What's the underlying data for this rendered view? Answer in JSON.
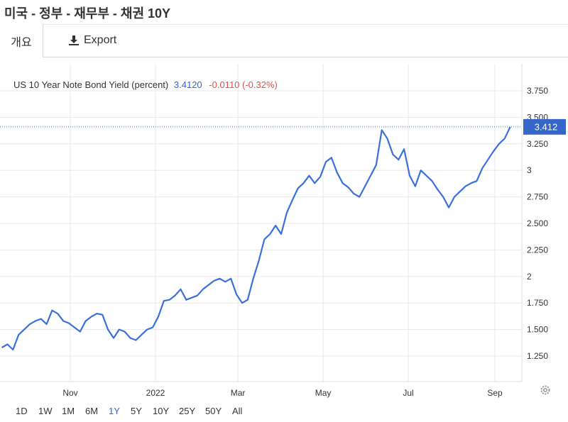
{
  "header": {
    "title": "미국 - 정부 - 재무부 - 채권 10Y"
  },
  "tabs": {
    "overview": "개요",
    "export": "Export"
  },
  "legend": {
    "name": "US 10 Year Note Bond Yield (percent)",
    "value": "3.4120",
    "change": "-0.0110 (-0.32%)"
  },
  "current_label": "3.412",
  "ranges": [
    "1D",
    "1W",
    "1M",
    "6M",
    "1Y",
    "5Y",
    "10Y",
    "25Y",
    "50Y",
    "All"
  ],
  "active_range": "1Y",
  "colors": {
    "line": "#3a6fdc",
    "accent": "#3566c8",
    "negative": "#d9534f",
    "grid": "#e8e8e8"
  },
  "chart_data": {
    "type": "line",
    "title": "",
    "xlabel": "",
    "ylabel": "",
    "ylim": [
      1.1,
      3.85
    ],
    "y_ticks": [
      "1.250",
      "1.500",
      "1.750",
      "2",
      "2.250",
      "2.500",
      "2.750",
      "3",
      "3.250",
      "3.500",
      "3.750"
    ],
    "x_ticks": [
      "Nov",
      "2022",
      "Mar",
      "May",
      "Jul",
      "Sep"
    ],
    "grid": true,
    "series": [
      {
        "name": "US 10 Year Note Bond Yield (percent)",
        "x": [
          "2021-09-13",
          "2021-09-17",
          "2021-09-21",
          "2021-09-25",
          "2021-09-29",
          "2021-10-03",
          "2021-10-07",
          "2021-10-11",
          "2021-10-15",
          "2021-10-19",
          "2021-10-23",
          "2021-10-27",
          "2021-10-31",
          "2021-11-04",
          "2021-11-08",
          "2021-11-12",
          "2021-11-16",
          "2021-11-20",
          "2021-11-24",
          "2021-11-28",
          "2021-12-02",
          "2021-12-06",
          "2021-12-10",
          "2021-12-14",
          "2021-12-18",
          "2021-12-22",
          "2021-12-26",
          "2021-12-30",
          "2022-01-03",
          "2022-01-07",
          "2022-01-11",
          "2022-01-15",
          "2022-01-19",
          "2022-01-23",
          "2022-01-27",
          "2022-01-31",
          "2022-02-04",
          "2022-02-08",
          "2022-02-12",
          "2022-02-16",
          "2022-02-20",
          "2022-02-24",
          "2022-02-28",
          "2022-03-04",
          "2022-03-08",
          "2022-03-12",
          "2022-03-16",
          "2022-03-20",
          "2022-03-24",
          "2022-03-28",
          "2022-04-01",
          "2022-04-05",
          "2022-04-09",
          "2022-04-13",
          "2022-04-17",
          "2022-04-21",
          "2022-04-25",
          "2022-04-29",
          "2022-05-03",
          "2022-05-07",
          "2022-05-11",
          "2022-05-15",
          "2022-05-19",
          "2022-05-23",
          "2022-05-27",
          "2022-05-31",
          "2022-06-04",
          "2022-06-08",
          "2022-06-12",
          "2022-06-16",
          "2022-06-20",
          "2022-06-24",
          "2022-06-28",
          "2022-07-02",
          "2022-07-06",
          "2022-07-10",
          "2022-07-14",
          "2022-07-18",
          "2022-07-22",
          "2022-07-26",
          "2022-07-30",
          "2022-08-03",
          "2022-08-07",
          "2022-08-11",
          "2022-08-15",
          "2022-08-19",
          "2022-08-23",
          "2022-08-27",
          "2022-08-31",
          "2022-09-04",
          "2022-09-08",
          "2022-09-12"
        ],
        "values": [
          1.33,
          1.36,
          1.31,
          1.45,
          1.5,
          1.55,
          1.58,
          1.6,
          1.55,
          1.68,
          1.65,
          1.58,
          1.56,
          1.52,
          1.48,
          1.58,
          1.62,
          1.65,
          1.64,
          1.5,
          1.42,
          1.5,
          1.48,
          1.42,
          1.4,
          1.45,
          1.5,
          1.52,
          1.62,
          1.77,
          1.78,
          1.82,
          1.88,
          1.78,
          1.8,
          1.82,
          1.88,
          1.92,
          1.96,
          1.98,
          1.95,
          1.98,
          1.83,
          1.75,
          1.78,
          1.98,
          2.15,
          2.35,
          2.4,
          2.48,
          2.4,
          2.6,
          2.72,
          2.83,
          2.88,
          2.95,
          2.88,
          2.94,
          3.08,
          3.12,
          2.98,
          2.88,
          2.84,
          2.78,
          2.75,
          2.85,
          2.95,
          3.05,
          3.38,
          3.3,
          3.15,
          3.1,
          3.2,
          2.95,
          2.85,
          3.0,
          2.95,
          2.9,
          2.82,
          2.75,
          2.65,
          2.75,
          2.8,
          2.85,
          2.88,
          2.9,
          3.02,
          3.1,
          3.18,
          3.25,
          3.3,
          3.41
        ]
      }
    ]
  }
}
